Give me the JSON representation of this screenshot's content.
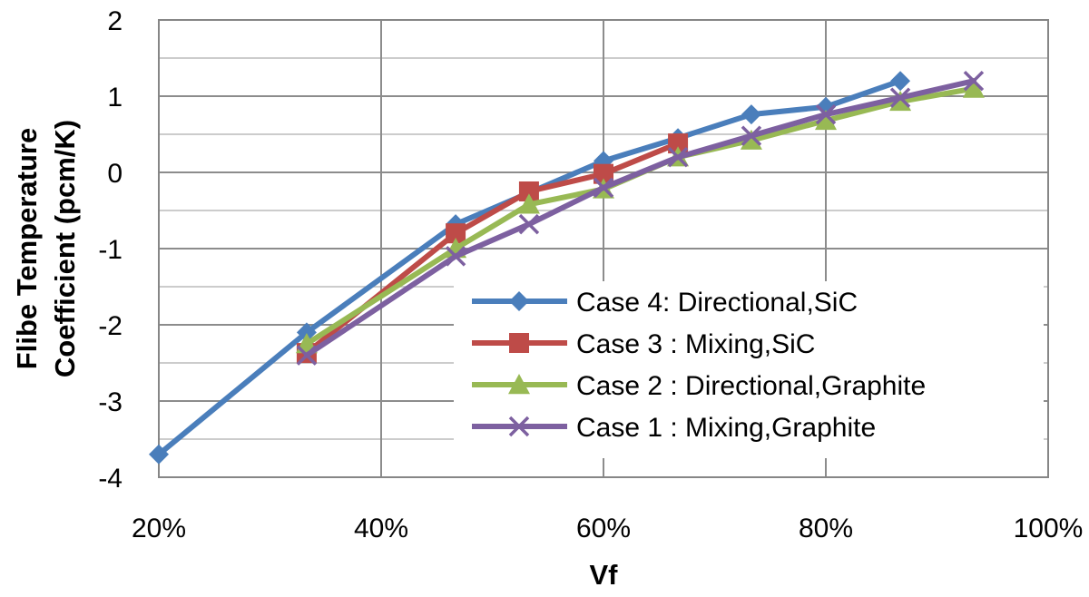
{
  "chart_data": {
    "type": "line",
    "title": "",
    "xlabel": "Vf",
    "ylabel_lines": [
      "Flibe Temperature",
      "Coefficient (pcm/K)"
    ],
    "xlim": [
      0.2,
      1.0
    ],
    "ylim": [
      -4,
      2
    ],
    "x_ticks": [
      0.2,
      0.4,
      0.6,
      0.8,
      1.0
    ],
    "x_tick_labels": [
      "20%",
      "40%",
      "60%",
      "80%",
      "100%"
    ],
    "y_ticks": [
      2,
      1,
      0,
      -1,
      -2,
      -3,
      -4
    ],
    "y_tick_labels": [
      "2",
      "1",
      "0",
      "-1",
      "-2",
      "-3",
      "-4"
    ],
    "grid": true,
    "legend_position": "lower-right",
    "series": [
      {
        "name": "Case 4: Directional,SiC",
        "color": "#4a7ebb",
        "marker": "diamond",
        "x": [
          0.2,
          0.333,
          0.467,
          0.6,
          0.667,
          0.733,
          0.8,
          0.867
        ],
        "y": [
          -3.7,
          -2.1,
          -0.68,
          0.15,
          0.45,
          0.76,
          0.86,
          1.2
        ]
      },
      {
        "name": "Case 3 : Mixing,SiC",
        "color": "#be4b48",
        "marker": "square",
        "x": [
          0.333,
          0.467,
          0.533,
          0.6,
          0.667
        ],
        "y": [
          -2.37,
          -0.8,
          -0.25,
          -0.02,
          0.38
        ]
      },
      {
        "name": "Case 2 : Directional,Graphite",
        "color": "#98b954",
        "marker": "triangle",
        "x": [
          0.333,
          0.467,
          0.533,
          0.6,
          0.667,
          0.733,
          0.8,
          0.867,
          0.933
        ],
        "y": [
          -2.25,
          -1.0,
          -0.42,
          -0.22,
          0.2,
          0.42,
          0.68,
          0.93,
          1.1
        ]
      },
      {
        "name": "Case 1 : Mixing,Graphite",
        "color": "#7d60a0",
        "marker": "x",
        "x": [
          0.333,
          0.467,
          0.533,
          0.6,
          0.667,
          0.733,
          0.8,
          0.867,
          0.933
        ],
        "y": [
          -2.4,
          -1.1,
          -0.68,
          -0.2,
          0.2,
          0.48,
          0.76,
          0.98,
          1.2
        ]
      }
    ]
  }
}
